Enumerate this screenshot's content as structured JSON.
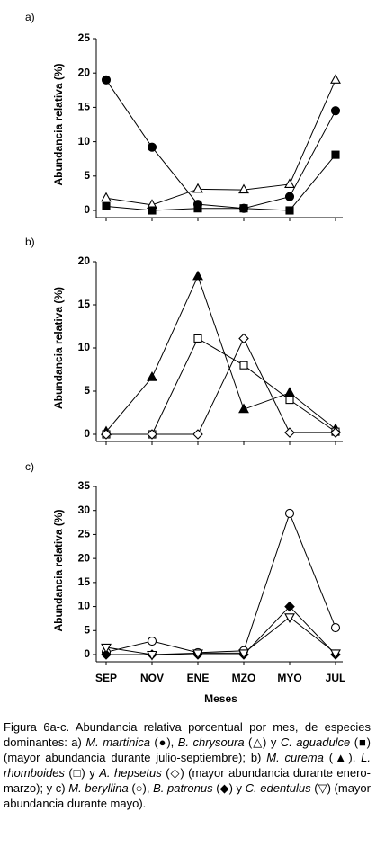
{
  "chart_data": [
    {
      "type": "line",
      "title": "a)",
      "ylabel": "Abundancia relativa (%)",
      "categories": [
        null,
        null,
        null,
        null,
        null,
        null
      ],
      "ylim": [
        0,
        25
      ],
      "yticks": [
        0,
        5,
        10,
        15,
        20,
        25
      ],
      "series": [
        {
          "name": "M. martinica",
          "color": "#000000",
          "marker": "circle",
          "filled": true,
          "values": [
            19,
            9.2,
            0.9,
            0.3,
            2,
            14.5
          ]
        },
        {
          "name": "B. chrysoura",
          "color": "#000000",
          "marker": "triangle-up",
          "filled": false,
          "values": [
            1.8,
            0.8,
            3.1,
            3,
            3.8,
            19
          ]
        },
        {
          "name": "C. aguadulce",
          "color": "#000000",
          "marker": "square",
          "filled": true,
          "values": [
            0.6,
            0,
            0.3,
            0.3,
            0,
            8.1
          ]
        }
      ]
    },
    {
      "type": "line",
      "title": "b)",
      "ylabel": "Abundancia relativa (%)",
      "categories": [
        null,
        null,
        null,
        null,
        null,
        null
      ],
      "ylim": [
        0,
        20
      ],
      "yticks": [
        0,
        5,
        10,
        15,
        20
      ],
      "series": [
        {
          "name": "M. curema",
          "color": "#000000",
          "marker": "triangle-up",
          "filled": true,
          "values": [
            0.3,
            6.6,
            18.3,
            2.9,
            4.8,
            0.6
          ]
        },
        {
          "name": "L. rhomboides",
          "color": "#000000",
          "marker": "square",
          "filled": false,
          "values": [
            0,
            0,
            11.1,
            8,
            4,
            0.3
          ]
        },
        {
          "name": "A. hepsetus",
          "color": "#000000",
          "marker": "diamond",
          "filled": false,
          "values": [
            0,
            0,
            0,
            11.1,
            0.2,
            0.2
          ]
        }
      ]
    },
    {
      "type": "line",
      "title": "c)",
      "ylabel": "Abundancia relativa (%)",
      "xlabel": "Meses",
      "categories": [
        "SEP",
        "NOV",
        "ENE",
        "MZO",
        "MYO",
        "JUL"
      ],
      "ylim": [
        0,
        35
      ],
      "yticks": [
        0,
        5,
        10,
        15,
        20,
        25,
        30,
        35
      ],
      "series": [
        {
          "name": "M. beryllina",
          "color": "#000000",
          "marker": "circle",
          "filled": false,
          "values": [
            0.5,
            2.8,
            0.4,
            0.8,
            29.4,
            5.6
          ]
        },
        {
          "name": "B. patronus",
          "color": "#000000",
          "marker": "diamond",
          "filled": true,
          "values": [
            0,
            0,
            0,
            0,
            10,
            0
          ]
        },
        {
          "name": "C. edentulus",
          "color": "#000000",
          "marker": "triangle-down",
          "filled": false,
          "values": [
            1.5,
            0,
            0.3,
            0.3,
            7.8,
            0.3
          ]
        }
      ]
    }
  ],
  "caption_parts": [
    "Figura 6a-c. Abundancia relativa porcentual por mes, de especies dominantes: a) ",
    " (●), ",
    " (△) y ",
    " (■) (mayor abundancia durante julio-septiembre); b) ",
    " (▲), ",
    " (□) y ",
    " (◇) (mayor abundancia durante enero-marzo); y c) ",
    " (○), ",
    " (◆) y ",
    " (▽) (mayor abundancia durante mayo)."
  ]
}
